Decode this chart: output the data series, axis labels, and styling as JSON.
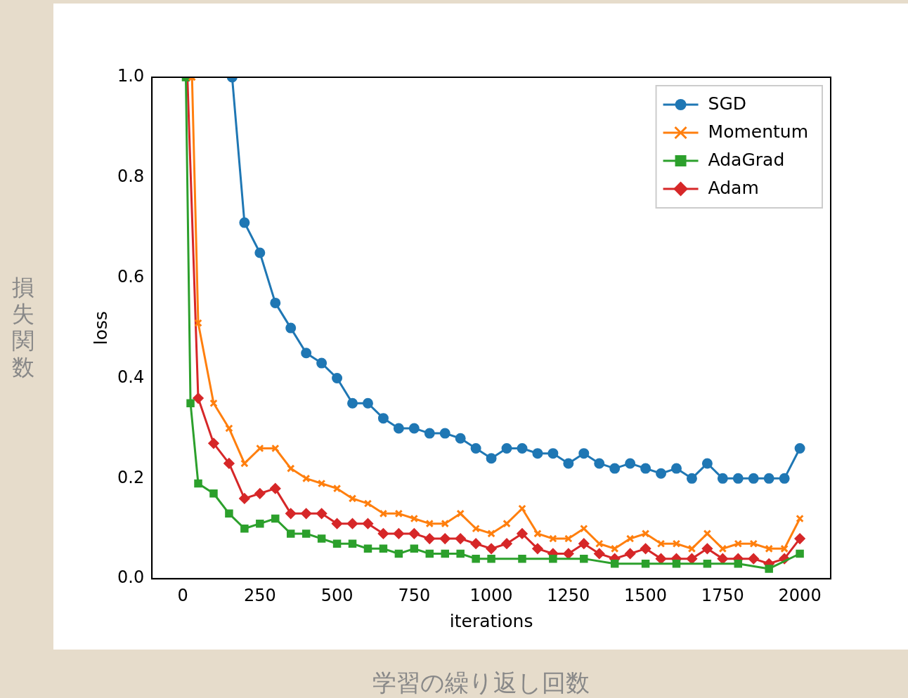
{
  "chart_data": {
    "type": "line",
    "xlabel": "iterations",
    "ylabel": "loss",
    "annotations": [
      "損失関数",
      "学習の繰り返し回数"
    ],
    "xlim": [
      -100,
      2100
    ],
    "xticks": [
      0,
      250,
      500,
      750,
      1000,
      1250,
      1500,
      1750,
      2000
    ],
    "ylim": [
      0,
      1.0
    ],
    "yticks": [
      {
        "value": 0,
        "label": "0.0"
      },
      0.2,
      0.4,
      0.6,
      0.8,
      {
        "value": 1,
        "label": "1.0"
      }
    ],
    "grid": false,
    "legend": "top right",
    "line_style": "solid",
    "series": [
      {
        "name": "SGD",
        "color": "#1f77b4",
        "marker": "circle",
        "x": [
          160,
          200,
          250,
          300,
          350,
          400,
          450,
          500,
          550,
          600,
          650,
          700,
          750,
          800,
          850,
          900,
          950,
          1000,
          1050,
          1100,
          1150,
          1200,
          1250,
          1300,
          1350,
          1400,
          1450,
          1500,
          1550,
          1600,
          1650,
          1700,
          1750,
          1800,
          1850,
          1900,
          1950,
          2000
        ],
        "values": [
          1.0,
          0.71,
          0.65,
          0.55,
          0.5,
          0.45,
          0.43,
          0.4,
          0.35,
          0.35,
          0.32,
          0.3,
          0.3,
          0.29,
          0.29,
          0.28,
          0.26,
          0.24,
          0.26,
          0.26,
          0.25,
          0.25,
          0.23,
          0.25,
          0.23,
          0.22,
          0.23,
          0.22,
          0.21,
          0.22,
          0.2,
          0.23,
          0.2,
          0.2,
          0.2,
          0.2,
          0.2,
          0.26
        ]
      },
      {
        "name": "Momentum",
        "color": "#ff7f0e",
        "marker": "cross",
        "x": [
          30,
          50,
          100,
          150,
          200,
          250,
          300,
          350,
          400,
          450,
          500,
          550,
          600,
          650,
          700,
          750,
          800,
          850,
          900,
          950,
          1000,
          1050,
          1100,
          1150,
          1200,
          1250,
          1300,
          1350,
          1400,
          1450,
          1500,
          1550,
          1600,
          1650,
          1700,
          1750,
          1800,
          1850,
          1900,
          1950,
          2000
        ],
        "values": [
          1.0,
          0.51,
          0.35,
          0.3,
          0.23,
          0.26,
          0.26,
          0.22,
          0.2,
          0.19,
          0.18,
          0.16,
          0.15,
          0.13,
          0.13,
          0.12,
          0.11,
          0.11,
          0.13,
          0.1,
          0.09,
          0.11,
          0.14,
          0.09,
          0.08,
          0.08,
          0.1,
          0.07,
          0.06,
          0.08,
          0.09,
          0.07,
          0.07,
          0.06,
          0.09,
          0.06,
          0.07,
          0.07,
          0.06,
          0.06,
          0.12
        ]
      },
      {
        "name": "AdaGrad",
        "color": "#2ca02c",
        "marker": "square",
        "x": [
          10,
          25,
          50,
          100,
          150,
          200,
          250,
          300,
          350,
          400,
          450,
          500,
          550,
          600,
          650,
          700,
          750,
          800,
          850,
          900,
          950,
          1000,
          1100,
          1200,
          1300,
          1400,
          1500,
          1600,
          1700,
          1800,
          1900,
          2000
        ],
        "values": [
          1.0,
          0.35,
          0.19,
          0.17,
          0.13,
          0.1,
          0.11,
          0.12,
          0.09,
          0.09,
          0.08,
          0.07,
          0.07,
          0.06,
          0.06,
          0.05,
          0.06,
          0.05,
          0.05,
          0.05,
          0.04,
          0.04,
          0.04,
          0.04,
          0.04,
          0.03,
          0.03,
          0.03,
          0.03,
          0.03,
          0.02,
          0.05
        ]
      },
      {
        "name": "Adam",
        "color": "#d62728",
        "marker": "diamond",
        "x": [
          15,
          50,
          100,
          150,
          200,
          250,
          300,
          350,
          400,
          450,
          500,
          550,
          600,
          650,
          700,
          750,
          800,
          850,
          900,
          950,
          1000,
          1050,
          1100,
          1150,
          1200,
          1250,
          1300,
          1350,
          1400,
          1450,
          1500,
          1550,
          1600,
          1650,
          1700,
          1750,
          1800,
          1850,
          1900,
          1950,
          2000
        ],
        "values": [
          1.0,
          0.36,
          0.27,
          0.23,
          0.16,
          0.17,
          0.18,
          0.13,
          0.13,
          0.13,
          0.11,
          0.11,
          0.11,
          0.09,
          0.09,
          0.09,
          0.08,
          0.08,
          0.08,
          0.07,
          0.06,
          0.07,
          0.09,
          0.06,
          0.05,
          0.05,
          0.07,
          0.05,
          0.04,
          0.05,
          0.06,
          0.04,
          0.04,
          0.04,
          0.06,
          0.04,
          0.04,
          0.04,
          0.03,
          0.04,
          0.08
        ]
      }
    ]
  }
}
